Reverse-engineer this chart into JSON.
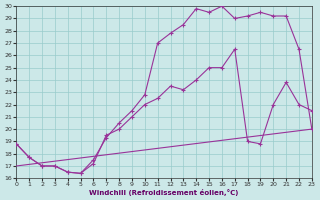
{
  "bg_color": "#cce8e8",
  "line_color": "#993399",
  "grid_color": "#99cccc",
  "xlim": [
    0,
    23
  ],
  "ylim": [
    16,
    30
  ],
  "xticks": [
    0,
    1,
    2,
    3,
    4,
    5,
    6,
    7,
    8,
    9,
    10,
    11,
    12,
    13,
    14,
    15,
    16,
    17,
    18,
    19,
    20,
    21,
    22,
    23
  ],
  "yticks": [
    16,
    17,
    18,
    19,
    20,
    21,
    22,
    23,
    24,
    25,
    26,
    27,
    28,
    29,
    30
  ],
  "xlabel": "Windchill (Refroidissement éolien,°C)",
  "s1x": [
    0,
    1,
    2,
    3,
    4,
    5,
    6,
    7,
    8,
    9,
    10,
    11,
    12,
    13,
    14,
    15,
    16,
    17,
    18,
    19,
    20,
    21,
    22,
    23
  ],
  "s1y": [
    18.8,
    17.7,
    17.0,
    17.0,
    16.5,
    16.4,
    17.2,
    19.5,
    20.0,
    21.0,
    22.0,
    22.5,
    23.5,
    23.2,
    24.0,
    25.0,
    25.0,
    26.5,
    19.0,
    18.8,
    22.0,
    23.8,
    22.0,
    21.5
  ],
  "s2x": [
    0,
    1,
    2,
    3,
    4,
    5,
    6,
    7,
    8,
    9,
    10,
    11,
    12,
    13,
    14,
    15,
    16,
    17,
    18,
    19,
    20,
    21,
    22,
    23
  ],
  "s2y": [
    18.8,
    17.7,
    17.0,
    17.0,
    16.5,
    16.4,
    17.5,
    19.3,
    20.5,
    21.5,
    22.8,
    27.0,
    27.8,
    28.5,
    29.8,
    29.5,
    30.0,
    29.0,
    29.2,
    29.5,
    29.2,
    29.2,
    26.5,
    20.0
  ],
  "s3x": [
    0,
    23
  ],
  "s3y": [
    17.0,
    20.0
  ]
}
